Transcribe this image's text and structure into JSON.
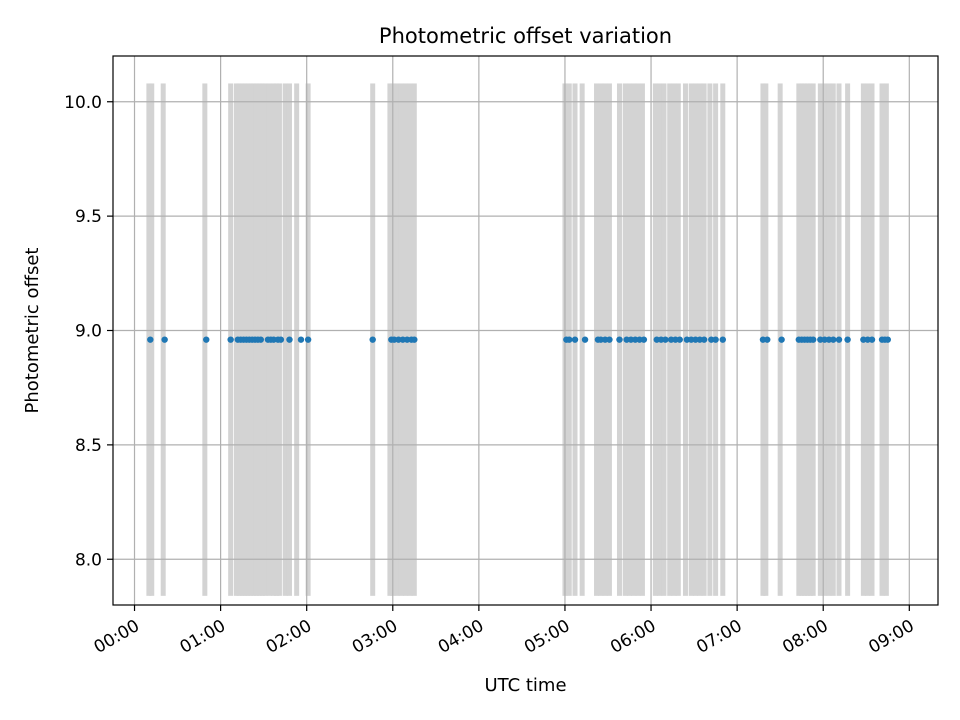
{
  "chart_data": {
    "type": "scatter",
    "title": "Photometric offset variation",
    "xlabel": "UTC time",
    "ylabel": "Photometric offset",
    "x_axis": {
      "type": "time",
      "range": [
        "-00:15",
        "09:20"
      ],
      "ticks": [
        "00:00",
        "01:00",
        "02:00",
        "03:00",
        "04:00",
        "05:00",
        "06:00",
        "07:00",
        "08:00",
        "09:00"
      ],
      "tick_label_rotation": "30deg"
    },
    "y_axis": {
      "range": [
        7.8,
        10.2
      ],
      "ticks": [
        "8.0",
        "8.5",
        "9.0",
        "9.5",
        "10.0"
      ]
    },
    "grid": true,
    "colors": {
      "points": "#1f77b4",
      "bars": "#d3d3d3",
      "grid": "#b0b0b0"
    },
    "bars": {
      "y_range": [
        7.84,
        10.08
      ],
      "times": [
        "00:10",
        "00:12",
        "00:20",
        "00:49",
        "01:07",
        "01:11",
        "01:13",
        "01:15",
        "01:17",
        "01:19",
        "01:21",
        "01:23",
        "01:25",
        "01:27",
        "01:29",
        "01:31",
        "01:34",
        "01:37",
        "01:39",
        "01:41",
        "01:45",
        "01:48",
        "01:53",
        "02:01",
        "02:46",
        "02:58",
        "03:00",
        "03:03",
        "03:06",
        "03:09",
        "03:12",
        "03:15",
        "05:00",
        "05:03",
        "05:07",
        "05:12",
        "05:22",
        "05:25",
        "05:28",
        "05:31",
        "05:38",
        "05:42",
        "05:45",
        "05:48",
        "05:51",
        "05:54",
        "06:03",
        "06:06",
        "06:09",
        "06:13",
        "06:16",
        "06:19",
        "06:24",
        "06:28",
        "06:31",
        "06:34",
        "06:37",
        "06:41",
        "06:45",
        "06:50",
        "07:18",
        "07:20",
        "07:30",
        "07:43",
        "07:45",
        "07:47",
        "07:49",
        "07:51",
        "07:53",
        "07:58",
        "08:01",
        "08:04",
        "08:07",
        "08:11",
        "08:17",
        "08:28",
        "08:31",
        "08:34",
        "08:41",
        "08:44"
      ]
    },
    "series": [
      {
        "y": 8.96,
        "x": [
          "00:11",
          "00:21",
          "00:50",
          "01:07",
          "01:12",
          "01:14",
          "01:16",
          "01:18",
          "01:20",
          "01:22",
          "01:24",
          "01:26",
          "01:28",
          "01:33",
          "01:35",
          "01:37",
          "01:40",
          "01:42",
          "01:48",
          "01:56",
          "02:01",
          "02:46",
          "02:59",
          "03:01",
          "03:04",
          "03:07",
          "03:10",
          "03:13",
          "03:15",
          "05:01",
          "05:03",
          "05:07",
          "05:14",
          "05:23",
          "05:25",
          "05:28",
          "05:31",
          "05:38",
          "05:43",
          "05:46",
          "05:49",
          "05:52",
          "05:55",
          "06:04",
          "06:07",
          "06:10",
          "06:14",
          "06:17",
          "06:20",
          "06:25",
          "06:28",
          "06:31",
          "06:34",
          "06:37",
          "06:42",
          "06:45",
          "06:50",
          "07:18",
          "07:21",
          "07:31",
          "07:43",
          "07:45",
          "07:47",
          "07:49",
          "07:51",
          "07:53",
          "07:58",
          "08:01",
          "08:04",
          "08:07",
          "08:11",
          "08:17",
          "08:28",
          "08:31",
          "08:34",
          "08:41",
          "08:43",
          "08:45"
        ]
      }
    ]
  }
}
